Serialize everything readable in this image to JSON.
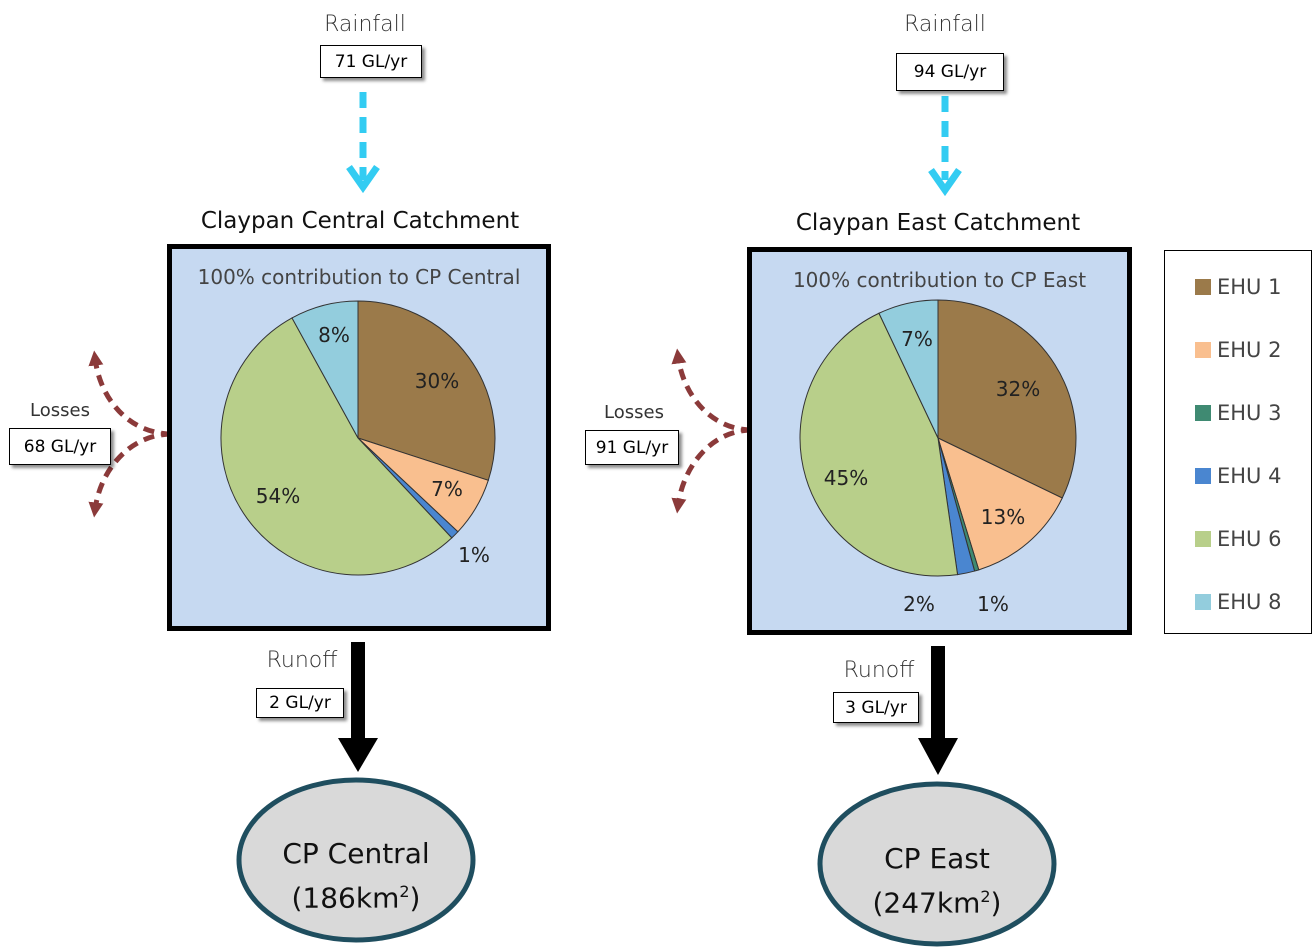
{
  "central": {
    "rainfall_label": "Rainfall",
    "rainfall_value": "71 GL/yr",
    "title": "Claypan Central Catchment",
    "contribution": "100% contribution to CP Central",
    "losses_label": "Losses",
    "losses_value": "68 GL/yr",
    "runoff_label": "Runoff",
    "runoff_value": "2 GL/yr",
    "destination_name": "CP Central",
    "destination_area": "(186km",
    "destination_area_sup": "2",
    "destination_area_end": ")"
  },
  "east": {
    "rainfall_label": "Rainfall",
    "rainfall_value": "94 GL/yr",
    "title": "Claypan East Catchment",
    "contribution": "100% contribution to CP East",
    "losses_label": "Losses",
    "losses_value": "91 GL/yr",
    "runoff_label": "Runoff",
    "runoff_value": "3 GL/yr",
    "destination_name": "CP East",
    "destination_area": "(247km",
    "destination_area_sup": "2",
    "destination_area_end": ")"
  },
  "legend": [
    {
      "label": "EHU 1",
      "color": "#9b7a4a"
    },
    {
      "label": "EHU 2",
      "color": "#f9bf8f"
    },
    {
      "label": "EHU 3",
      "color": "#3f8a72"
    },
    {
      "label": "EHU 4",
      "color": "#4a86d0"
    },
    {
      "label": "EHU 6",
      "color": "#b8cf8a"
    },
    {
      "label": "EHU 8",
      "color": "#93cddd"
    }
  ],
  "chart_data": [
    {
      "type": "pie",
      "categories": [
        "EHU 1",
        "EHU 2",
        "EHU 4",
        "EHU 6",
        "EHU 8"
      ],
      "values": [
        30,
        7,
        1,
        54,
        8
      ],
      "labels": [
        "30%",
        "7%",
        "1%",
        "54%",
        "8%"
      ],
      "colors": [
        "#9b7a4a",
        "#f9bf8f",
        "#4a86d0",
        "#b8cf8a",
        "#93cddd"
      ]
    },
    {
      "type": "pie",
      "categories": [
        "EHU 1",
        "EHU 2",
        "EHU 3",
        "EHU 4",
        "EHU 6",
        "EHU 8"
      ],
      "values": [
        32,
        13,
        0.5,
        2,
        45,
        7
      ],
      "labels": [
        "32%",
        "13%",
        "1%",
        "2%",
        "45%",
        "7%"
      ],
      "colors": [
        "#9b7a4a",
        "#f9bf8f",
        "#3f8a72",
        "#4a86d0",
        "#b8cf8a",
        "#93cddd"
      ]
    }
  ],
  "colors": {
    "rainfall_arrow": "#33ccf2",
    "loss_arrow": "#8b3a3a",
    "runoff_arrow": "#000000",
    "catchment_fill": "#c6d9f1",
    "ellipse_fill": "#d9d9d9",
    "ellipse_border": "#1f4e5f"
  }
}
